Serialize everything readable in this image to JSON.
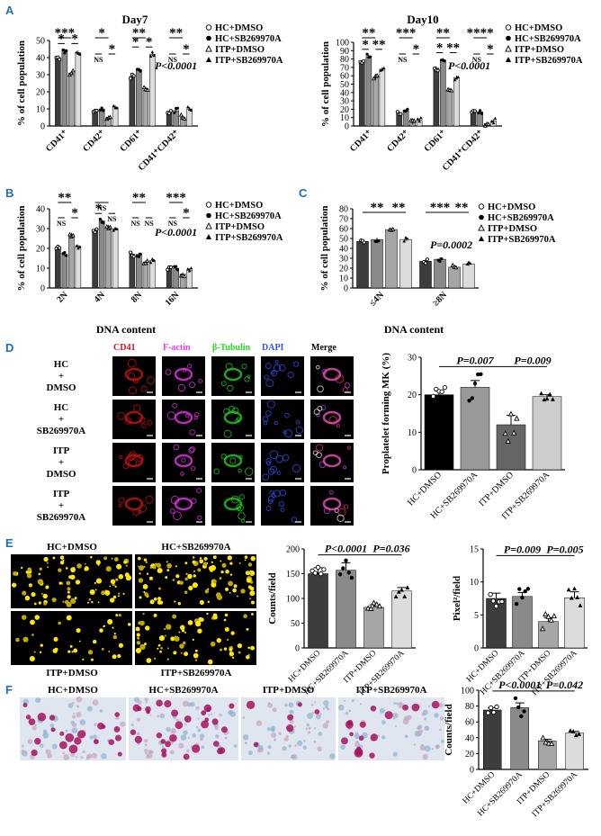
{
  "colors": {
    "hc_dmso": "#3d3d3d",
    "hc_sb": "#8a8a8a",
    "itp_dmso": "#a6a6a6",
    "itp_sb": "#dcdcdc",
    "letter": "#1f6fb4",
    "cd41": "#e0101a",
    "factin": "#ff33ff",
    "tubulin": "#22dd22",
    "dapi": "#3355ff"
  },
  "panels": {
    "A": "A",
    "B": "B",
    "C": "C",
    "D": "D",
    "E": "E",
    "F": "F"
  },
  "legend": [
    "HC+DMSO",
    "HC+SB269970A",
    "ITP+DMSO",
    "ITP+SB269970A"
  ],
  "legend_icons": [
    "open-circle",
    "filled-circle",
    "open-triangle",
    "filled-triangle"
  ],
  "ylabel_pct": "% of cell population",
  "A1": {
    "title": "Day7",
    "pval": "P<0.0001",
    "chart_data": {
      "type": "bar",
      "categories": [
        "CD41⁺",
        "CD42⁺",
        "CD61⁺",
        "CD41⁺CD42⁺"
      ],
      "ylim": [
        0,
        50
      ],
      "ticks": [
        0,
        10,
        20,
        30,
        40,
        50
      ],
      "series": [
        {
          "name": "HC+DMSO",
          "values": [
            40,
            9,
            29,
            8
          ]
        },
        {
          "name": "HC+SB269970A",
          "values": [
            44,
            10,
            33,
            9
          ]
        },
        {
          "name": "ITP+DMSO",
          "values": [
            31,
            5,
            22,
            5
          ]
        },
        {
          "name": "ITP+SB269970A",
          "values": [
            43,
            11,
            42,
            10
          ]
        }
      ]
    },
    "sig": [
      {
        "c": 0,
        "a": 0,
        "b": 2,
        "t": "***",
        "lvl": 2
      },
      {
        "c": 0,
        "a": 0,
        "b": 1,
        "t": "*",
        "lvl": 1
      },
      {
        "c": 0,
        "a": 2,
        "b": 3,
        "t": "*",
        "lvl": 1
      },
      {
        "c": 1,
        "a": 0,
        "b": 2,
        "t": "*",
        "lvl": 2
      },
      {
        "c": 1,
        "a": 0,
        "b": 1,
        "t": "NS",
        "lvl": 1
      },
      {
        "c": 1,
        "a": 2,
        "b": 3,
        "t": "*",
        "lvl": 1
      },
      {
        "c": 2,
        "a": 0,
        "b": 2,
        "t": "**",
        "lvl": 2
      },
      {
        "c": 2,
        "a": 0,
        "b": 1,
        "t": "*",
        "lvl": 1
      },
      {
        "c": 2,
        "a": 2,
        "b": 3,
        "t": "*",
        "lvl": 1
      },
      {
        "c": 3,
        "a": 0,
        "b": 2,
        "t": "**",
        "lvl": 2
      },
      {
        "c": 3,
        "a": 0,
        "b": 1,
        "t": "NS",
        "lvl": 1
      },
      {
        "c": 3,
        "a": 2,
        "b": 3,
        "t": "*",
        "lvl": 1
      }
    ]
  },
  "A2": {
    "title": "Day10",
    "pval": "P<0.0001",
    "chart_data": {
      "type": "bar",
      "categories": [
        "CD41⁺",
        "CD42⁺",
        "CD61⁺",
        "CD41⁺CD42⁺"
      ],
      "ylim": [
        0,
        100
      ],
      "ticks": [
        0,
        10,
        20,
        30,
        40,
        50,
        60,
        70,
        80,
        90,
        100
      ],
      "series": [
        {
          "name": "HC+DMSO",
          "values": [
            76,
            16,
            69,
            17
          ]
        },
        {
          "name": "HC+SB269970A",
          "values": [
            83,
            18,
            79,
            17
          ]
        },
        {
          "name": "ITP+DMSO",
          "values": [
            58,
            4,
            42,
            3
          ]
        },
        {
          "name": "ITP+SB269970A",
          "values": [
            68,
            7,
            58,
            6
          ]
        }
      ]
    },
    "sig": [
      {
        "c": 0,
        "a": 0,
        "b": 2,
        "t": "**",
        "lvl": 2
      },
      {
        "c": 0,
        "a": 0,
        "b": 1,
        "t": "*",
        "lvl": 1
      },
      {
        "c": 0,
        "a": 2,
        "b": 3,
        "t": "**",
        "lvl": 1
      },
      {
        "c": 1,
        "a": 0,
        "b": 2,
        "t": "***",
        "lvl": 2
      },
      {
        "c": 1,
        "a": 0,
        "b": 1,
        "t": "NS",
        "lvl": 1
      },
      {
        "c": 1,
        "a": 2,
        "b": 3,
        "t": "*",
        "lvl": 1
      },
      {
        "c": 2,
        "a": 0,
        "b": 2,
        "t": "**",
        "lvl": 2
      },
      {
        "c": 2,
        "a": 0,
        "b": 1,
        "t": "*",
        "lvl": 1
      },
      {
        "c": 2,
        "a": 2,
        "b": 3,
        "t": "**",
        "lvl": 1
      },
      {
        "c": 3,
        "a": 0,
        "b": 2,
        "t": "****",
        "lvl": 2
      },
      {
        "c": 3,
        "a": 0,
        "b": 1,
        "t": "NS",
        "lvl": 1
      },
      {
        "c": 3,
        "a": 2,
        "b": 3,
        "t": "*",
        "lvl": 1
      }
    ]
  },
  "B": {
    "pval": "P<0.0001",
    "xlabel": "DNA content",
    "chart_data": {
      "type": "bar",
      "categories": [
        "2N",
        "4N",
        "8N",
        "16N"
      ],
      "ylim": [
        0,
        40
      ],
      "ticks": [
        0,
        10,
        20,
        30,
        40
      ],
      "series": [
        {
          "name": "HC+DMSO",
          "values": [
            20,
            29,
            17,
            10
          ]
        },
        {
          "name": "HC+SB269970A",
          "values": [
            17,
            34,
            17,
            10
          ]
        },
        {
          "name": "ITP+DMSO",
          "values": [
            27,
            31,
            13,
            7
          ]
        },
        {
          "name": "ITP+SB269970A",
          "values": [
            21,
            30,
            14,
            9
          ]
        }
      ]
    },
    "sig": [
      {
        "c": 0,
        "a": 0,
        "b": 2,
        "t": "**",
        "lvl": 2
      },
      {
        "c": 0,
        "a": 0,
        "b": 1,
        "t": "NS",
        "lvl": 1
      },
      {
        "c": 0,
        "a": 2,
        "b": 3,
        "t": "*",
        "lvl": 1
      },
      {
        "c": 1,
        "a": 0,
        "b": 2,
        "t": "NS",
        "lvl": 2
      },
      {
        "c": 1,
        "a": 0,
        "b": 1,
        "t": "*",
        "lvl": 1
      },
      {
        "c": 1,
        "a": 2,
        "b": 3,
        "t": "NS",
        "lvl": 1
      },
      {
        "c": 2,
        "a": 0,
        "b": 2,
        "t": "**",
        "lvl": 2
      },
      {
        "c": 2,
        "a": 0,
        "b": 1,
        "t": "NS",
        "lvl": 1
      },
      {
        "c": 2,
        "a": 2,
        "b": 3,
        "t": "NS",
        "lvl": 1
      },
      {
        "c": 3,
        "a": 0,
        "b": 2,
        "t": "***",
        "lvl": 2
      },
      {
        "c": 3,
        "a": 0,
        "b": 1,
        "t": "NS",
        "lvl": 1
      },
      {
        "c": 3,
        "a": 2,
        "b": 3,
        "t": "*",
        "lvl": 1
      }
    ]
  },
  "C": {
    "pval": "P=0.0002",
    "xlabel": "DNA content",
    "chart_data": {
      "type": "bar",
      "categories": [
        "≤4N",
        "≥8N"
      ],
      "ylim": [
        0,
        80
      ],
      "ticks": [
        0,
        10,
        20,
        30,
        40,
        50,
        60,
        70,
        80
      ],
      "series": [
        {
          "name": "HC+DMSO",
          "values": [
            47,
            27
          ]
        },
        {
          "name": "HC+SB269970A",
          "values": [
            49,
            29
          ]
        },
        {
          "name": "ITP+DMSO",
          "values": [
            59,
            21
          ]
        },
        {
          "name": "ITP+SB269970A",
          "values": [
            49,
            24
          ]
        }
      ]
    },
    "sig": [
      {
        "c": 0,
        "a": 0,
        "b": 2,
        "t": "**",
        "lvl": 1
      },
      {
        "c": 0,
        "a": 2,
        "b": 3,
        "t": "**",
        "lvl": 1
      },
      {
        "c": 1,
        "a": 0,
        "b": 2,
        "t": "***",
        "lvl": 1
      },
      {
        "c": 1,
        "a": 2,
        "b": 3,
        "t": "**",
        "lvl": 1
      }
    ]
  },
  "D": {
    "headers": [
      "CD41",
      "F-actin",
      "β-Tubulin",
      "DAPI",
      "Merge"
    ],
    "rows": [
      "HC\n+\nDMSO",
      "HC\n+\nSB269970A",
      "ITP\n+\nDMSO",
      "ITP\n+\nSB269970A"
    ],
    "ylabel": "Proplatelet forming MK (%)",
    "p1": "P=0.007",
    "p2": "P=0.009",
    "chart_data": {
      "type": "bar",
      "categories": [
        "HC+DMSO",
        "HC+SB269970A",
        "ITP+DMSO",
        "ITP+SB269970A"
      ],
      "values": [
        20,
        22,
        12,
        19.5
      ],
      "errors": [
        1,
        1.8,
        2.5,
        0.5
      ],
      "ylim": [
        0,
        30
      ],
      "ticks": [
        0,
        10,
        20,
        30
      ]
    }
  },
  "E": {
    "img_labels": [
      "HC+DMSO",
      "HC+SB269970A",
      "ITP+DMSO",
      "ITP+SB269970A"
    ],
    "c1": {
      "ylabel": "Counts/field",
      "p1": "P<0.0001",
      "p2": "P=0.036",
      "chart_data": {
        "type": "bar",
        "categories": [
          "HC+DMSO",
          "HC+SB269970A",
          "ITP+DMSO",
          "ITP+SB269970A"
        ],
        "values": [
          150,
          157,
          82,
          115
        ],
        "errors": [
          12,
          15,
          5,
          7
        ],
        "ylim": [
          0,
          200
        ],
        "ticks": [
          0,
          50,
          100,
          150,
          200
        ]
      }
    },
    "c2": {
      "ylabel": "Pixel²/field",
      "p1": "P=0.009",
      "p2": "P=0.005",
      "chart_data": {
        "type": "bar",
        "categories": [
          "HC+DMSO",
          "HC+SB269970A",
          "ITP+DMSO",
          "ITP+SB269970A"
        ],
        "values": [
          7.5,
          7.8,
          4,
          7.6
        ],
        "errors": [
          0.8,
          0.6,
          0.6,
          0.9
        ],
        "ylim": [
          0,
          15
        ],
        "ticks": [
          0,
          5,
          10,
          15
        ]
      }
    }
  },
  "F": {
    "img_labels": [
      "HC+DMSO",
      "HC+SB269970A",
      "ITP+DMSO",
      "ITP+SB269970A"
    ],
    "ylabel": "Counts/field",
    "p1": "P<0.0001",
    "p2": "P=0.042",
    "chart_data": {
      "type": "bar",
      "categories": [
        "HC+DMSO",
        "HC+SB269970A",
        "ITP+DMSO",
        "ITP+SB269970A"
      ],
      "values": [
        75,
        78,
        36,
        46
      ],
      "errors": [
        3,
        6,
        2,
        2
      ],
      "ylim": [
        0,
        100
      ],
      "ticks": [
        0,
        20,
        40,
        60,
        80,
        100
      ]
    }
  }
}
